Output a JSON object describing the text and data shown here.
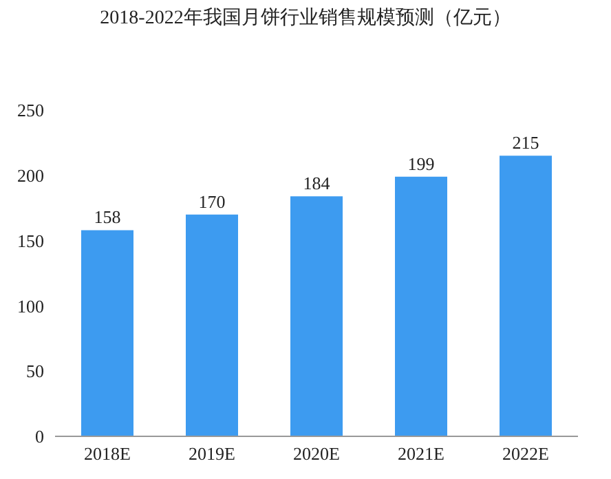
{
  "chart_data": {
    "type": "bar",
    "title": "2018-2022年我国月饼行业销售规模预测（亿元）",
    "categories": [
      "2018E",
      "2019E",
      "2020E",
      "2021E",
      "2022E"
    ],
    "values": [
      158,
      170,
      184,
      199,
      215
    ],
    "color": "#3d9bf0",
    "ylim": [
      0,
      250
    ],
    "yticks": [
      0,
      50,
      100,
      150,
      200,
      250
    ],
    "grid": false,
    "data_labels": true
  }
}
